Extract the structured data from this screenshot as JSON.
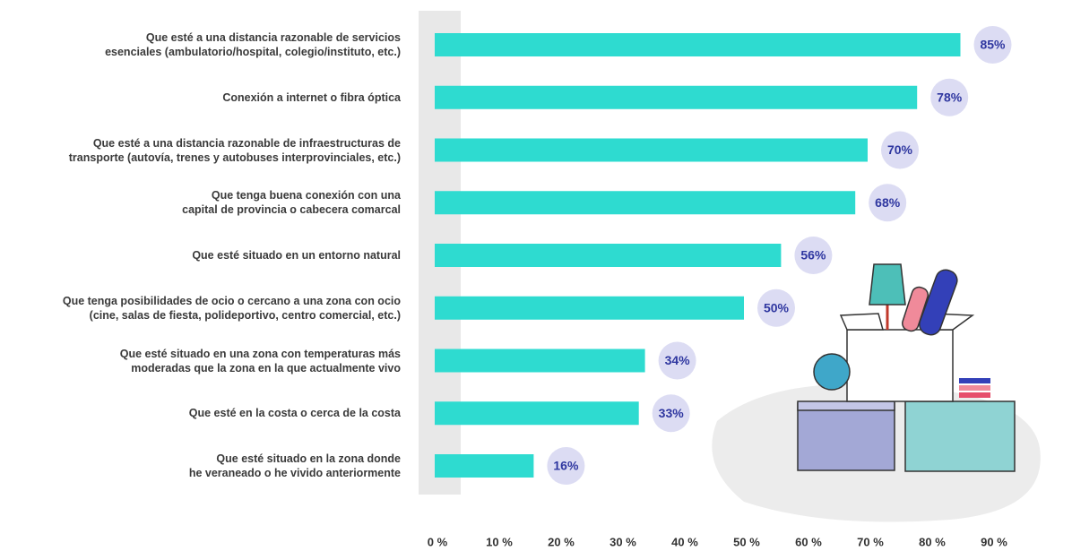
{
  "chart_data": {
    "type": "hbar",
    "categories": [
      "Que esté a una distancia razonable de servicios\nesenciales (ambulatorio/hospital, colegio/instituto, etc.)",
      "Conexión a internet o fibra óptica",
      "Que esté a una distancia razonable de infraestructuras de\ntransporte (autovía, trenes y autobuses interprovinciales, etc.)",
      "Que tenga buena conexión con una\ncapital de provincia o cabecera comarcal",
      "Que esté situado en un entorno natural",
      "Que tenga posibilidades de ocio o cercano a una zona con ocio\n(cine, salas de fiesta, polideportivo, centro comercial, etc.)",
      "Que esté situado en una zona con temperaturas más\nmoderadas que la zona en la que actualmente vivo",
      "Que esté en la costa o cerca de la costa",
      "Que esté situado en la zona donde\nhe veraneado o he vivido anteriormente"
    ],
    "values": [
      85,
      78,
      70,
      68,
      56,
      50,
      34,
      33,
      16
    ],
    "value_labels": [
      "85%",
      "78%",
      "70%",
      "68%",
      "56%",
      "50%",
      "34%",
      "33%",
      "16%"
    ],
    "color": "#2edbd0",
    "xlim": [
      0,
      90
    ],
    "xticks": [
      {
        "value": 0,
        "label": "0 %"
      },
      {
        "value": 10,
        "label": "10 %"
      },
      {
        "value": 20,
        "label": "20 %"
      },
      {
        "value": 30,
        "label": "30 %"
      },
      {
        "value": 40,
        "label": "40 %"
      },
      {
        "value": 50,
        "label": "50 %"
      },
      {
        "value": 60,
        "label": "60 %"
      },
      {
        "value": 70,
        "label": "70 %"
      },
      {
        "value": 80,
        "label": "80 %"
      },
      {
        "value": 90,
        "label": "90 %"
      }
    ],
    "grid": false
  }
}
